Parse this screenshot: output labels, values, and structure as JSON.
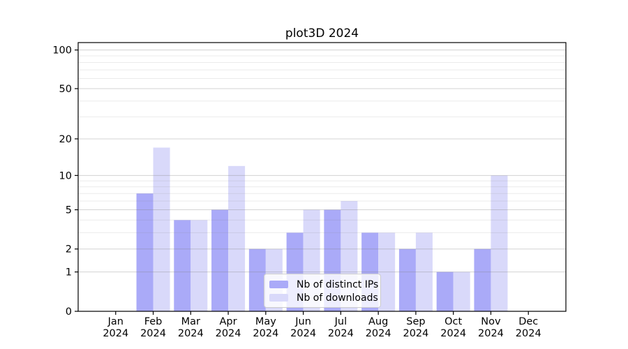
{
  "chart_data": {
    "type": "bar",
    "title": "plot3D 2024",
    "categories": [
      "Jan",
      "Feb",
      "Mar",
      "Apr",
      "May",
      "Jun",
      "Jul",
      "Aug",
      "Sep",
      "Oct",
      "Nov",
      "Dec"
    ],
    "x_year_label": "2024",
    "series": [
      {
        "name": "Nb of distinct IPs",
        "color": "#aaaaf8",
        "values": [
          0,
          7,
          4,
          5,
          2,
          3,
          5,
          3,
          2,
          1,
          2,
          0
        ]
      },
      {
        "name": "Nb of downloads",
        "color": "#d9d9fa",
        "values": [
          0,
          17,
          4,
          12,
          2,
          5,
          6,
          3,
          3,
          1,
          10,
          0
        ]
      }
    ],
    "yscale": "log1p",
    "yticks": [
      0,
      1,
      2,
      5,
      10,
      20,
      50,
      100
    ],
    "minor_gridlines": [
      3,
      4,
      6,
      7,
      8,
      9,
      30,
      40,
      60,
      70,
      80,
      90
    ],
    "ylim": [
      0,
      115
    ],
    "grid": "on",
    "grid_above_bars": true,
    "legend_position": "lower-center",
    "colors": {
      "major_grid": "rgba(128,128,128,0.35)",
      "minor_grid": "rgba(128,128,128,0.16)",
      "spine": "#000000",
      "text": "#000000",
      "legend_bg": "rgba(255,255,255,0.8)",
      "legend_border": "#cccccc"
    }
  }
}
